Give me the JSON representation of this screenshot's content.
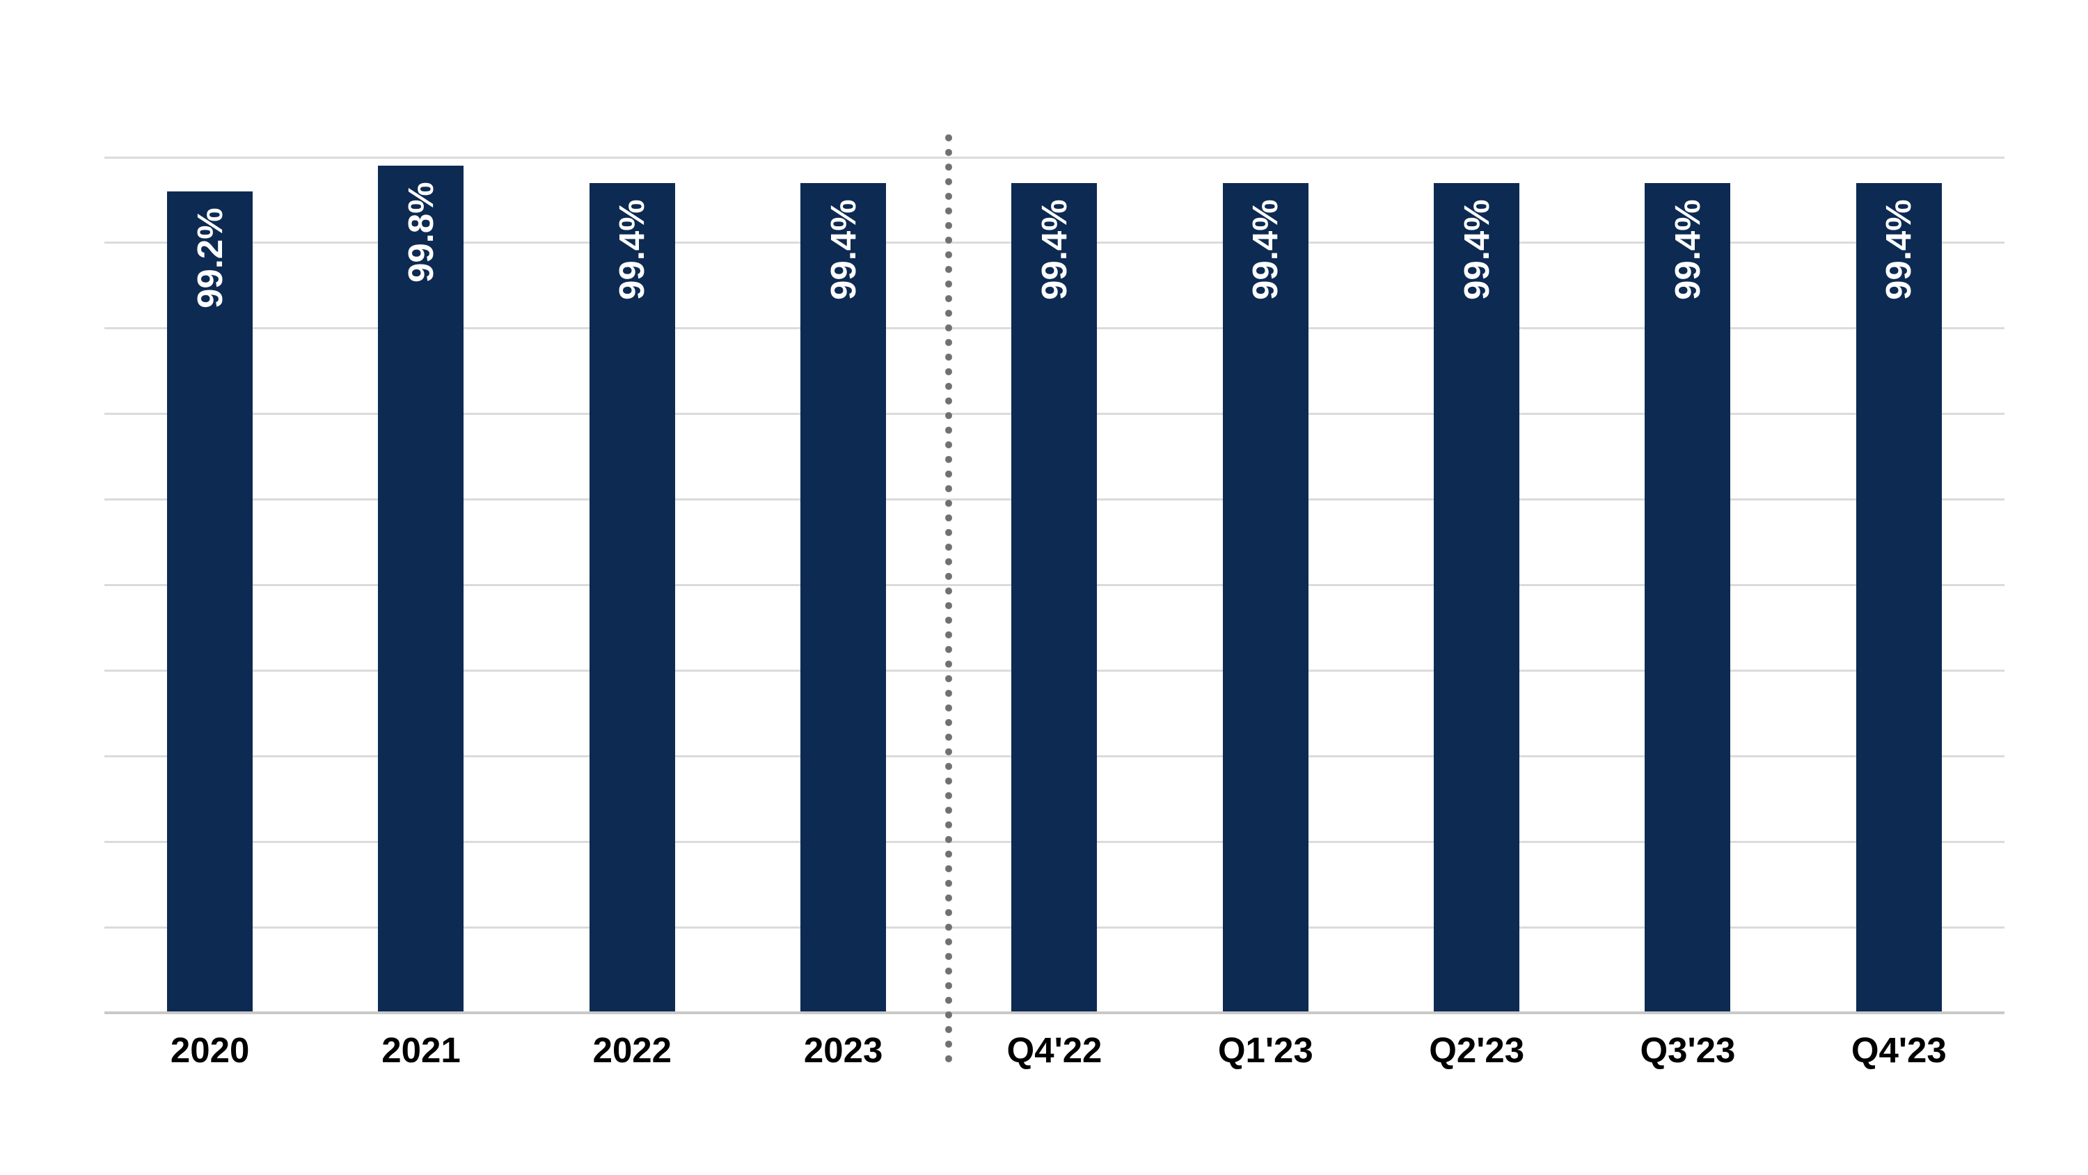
{
  "chart_data": {
    "type": "bar",
    "title": "",
    "xlabel": "",
    "ylabel": "",
    "categories": [
      "2020",
      "2021",
      "2022",
      "2023",
      "Q4'22",
      "Q1'23",
      "Q2'23",
      "Q3'23",
      "Q4'23"
    ],
    "values": [
      99.2,
      99.8,
      99.4,
      99.4,
      99.4,
      99.4,
      99.4,
      99.4,
      99.4
    ],
    "value_labels": [
      "99.2%",
      "99.8%",
      "99.4%",
      "99.4%",
      "99.4%",
      "99.4%",
      "99.4%",
      "99.4%",
      "99.4%"
    ],
    "value_label_rotation_deg": -90,
    "value_label_position": "inside-top",
    "ylim": [
      80,
      100
    ],
    "y_gridline_step": 2,
    "y_tick_labels_visible": false,
    "grid": "horizontal",
    "legend": "none",
    "separator": {
      "type": "vertical-dotted-line",
      "between": [
        "2023",
        "Q4'22"
      ],
      "after_category_index": 3
    },
    "colors": {
      "background": "#FFFFFF",
      "bar": "#0D2A52",
      "value-label": "#FFFFFF",
      "axis-label": "#000000",
      "gridline": "#DBDBDB",
      "axis-line": "#C9C9C9",
      "divider": "#707070"
    }
  }
}
